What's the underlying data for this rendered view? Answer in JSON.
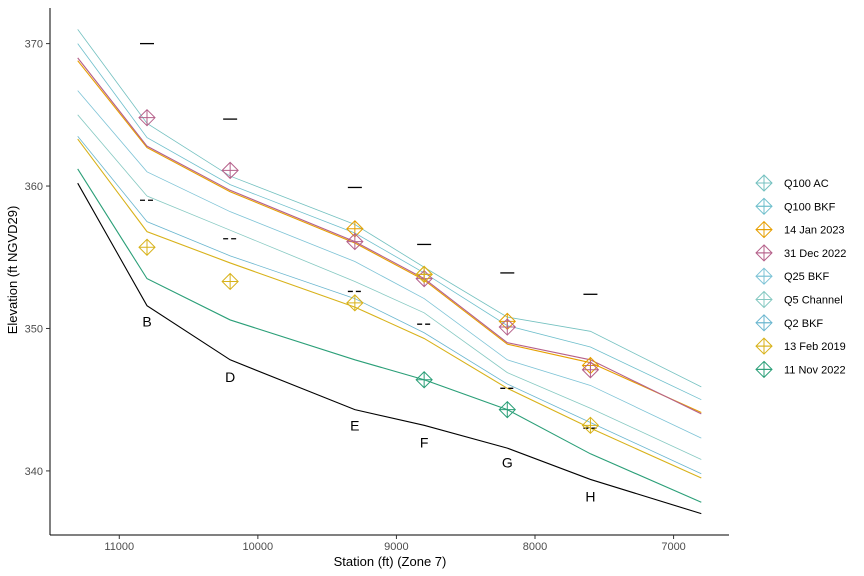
{
  "chart_data": {
    "type": "line",
    "xlabel": "Station (ft) (Zone 7)",
    "ylabel": "Elevation (ft NGVD29)",
    "xlim": [
      11500,
      6600
    ],
    "ylim": [
      335.5,
      372.5
    ],
    "x_reversed": true,
    "x_ticks": [
      11000,
      10000,
      9000,
      8000,
      7000
    ],
    "y_ticks": [
      340,
      350,
      360,
      370
    ],
    "grid": false,
    "legend_position": "right",
    "thalweg": {
      "color": "#000000",
      "x": [
        11300,
        10800,
        10200,
        9300,
        8800,
        8200,
        7600,
        6800
      ],
      "y": [
        360.2,
        351.6,
        347.8,
        344.3,
        343.2,
        341.6,
        339.4,
        337.0
      ]
    },
    "station_labels": [
      {
        "text": "B",
        "x": 10800,
        "y": 350.5
      },
      {
        "text": "D",
        "x": 10200,
        "y": 346.6
      },
      {
        "text": "E",
        "x": 9300,
        "y": 343.2
      },
      {
        "text": "F",
        "x": 8800,
        "y": 342.0
      },
      {
        "text": "G",
        "x": 8200,
        "y": 340.6
      },
      {
        "text": "H",
        "x": 7600,
        "y": 338.2
      }
    ],
    "dash_markers": [
      {
        "x": 10800,
        "y": 370.0,
        "style": "solid"
      },
      {
        "x": 10200,
        "y": 364.7,
        "style": "solid"
      },
      {
        "x": 9300,
        "y": 359.9,
        "style": "solid"
      },
      {
        "x": 8800,
        "y": 355.9,
        "style": "solid"
      },
      {
        "x": 8200,
        "y": 353.9,
        "style": "solid"
      },
      {
        "x": 7600,
        "y": 352.4,
        "style": "solid"
      },
      {
        "x": 10800,
        "y": 359.0,
        "style": "dashed"
      },
      {
        "x": 10200,
        "y": 356.3,
        "style": "dashed"
      },
      {
        "x": 9300,
        "y": 352.6,
        "style": "dashed"
      },
      {
        "x": 8800,
        "y": 350.3,
        "style": "dashed"
      },
      {
        "x": 8200,
        "y": 345.8,
        "style": "dashed"
      },
      {
        "x": 7600,
        "y": 343.0,
        "style": "dashed"
      }
    ],
    "series": [
      {
        "name": "Q100 AC",
        "color": "#74c1c0",
        "kind": "line",
        "x": [
          11300,
          10800,
          10200,
          9300,
          8800,
          8200,
          7600,
          6800
        ],
        "y": [
          371.0,
          364.4,
          360.7,
          357.3,
          354.3,
          350.8,
          349.8,
          345.9
        ]
      },
      {
        "name": "Q100 BKF",
        "color": "#6fbfcc",
        "kind": "line",
        "x": [
          11300,
          10800,
          10200,
          9300,
          8800,
          8200,
          7600,
          6800
        ],
        "y": [
          370.0,
          363.4,
          360.1,
          356.7,
          353.9,
          350.2,
          348.7,
          345.0
        ]
      },
      {
        "name": "14 Jan 2023",
        "color": "#e69f00",
        "kind": "line+marker",
        "x": [
          11300,
          10800,
          10200,
          9300,
          8800,
          8200,
          7600,
          6800
        ],
        "y": [
          368.8,
          362.7,
          359.6,
          356.0,
          353.4,
          348.9,
          347.6,
          344.1
        ],
        "marker_x": [
          9300,
          8800,
          8200,
          7600
        ],
        "marker_y": [
          357.0,
          353.8,
          350.5,
          347.4
        ]
      },
      {
        "name": "31 Dec 2022",
        "color": "#b5608a",
        "kind": "line+marker",
        "x": [
          11300,
          10800,
          10200,
          9300,
          8800,
          8200,
          7600,
          6800
        ],
        "y": [
          369.0,
          362.8,
          359.7,
          356.1,
          353.5,
          349.0,
          347.8,
          344.0
        ],
        "marker_x": [
          10800,
          10200,
          9300,
          8800,
          8200,
          7600
        ],
        "marker_y": [
          364.8,
          361.1,
          356.1,
          353.5,
          350.1,
          347.1
        ]
      },
      {
        "name": "Q25 BKF",
        "color": "#7dc3d6",
        "kind": "line",
        "x": [
          11300,
          10800,
          10200,
          9300,
          8800,
          8200,
          7600,
          6800
        ],
        "y": [
          366.7,
          361.0,
          358.2,
          354.7,
          352.1,
          347.8,
          346.0,
          342.3
        ]
      },
      {
        "name": "Q5 Channel",
        "color": "#86c9c2",
        "kind": "line",
        "x": [
          11300,
          10800,
          10200,
          9300,
          8800,
          8200,
          7600,
          6800
        ],
        "y": [
          365.0,
          359.3,
          356.9,
          353.3,
          351.1,
          346.9,
          344.4,
          340.8
        ]
      },
      {
        "name": "Q2 BKF",
        "color": "#6ab6cf",
        "kind": "line",
        "x": [
          11300,
          10800,
          10200,
          9300,
          8800,
          8200,
          7600,
          6800
        ],
        "y": [
          363.5,
          357.5,
          355.1,
          352.1,
          349.7,
          346.1,
          343.4,
          339.8
        ]
      },
      {
        "name": "13 Feb 2019",
        "color": "#d8b21a",
        "kind": "line+marker",
        "x": [
          11300,
          10800,
          10200,
          9300,
          8800,
          8200,
          7600,
          6800
        ],
        "y": [
          363.3,
          356.8,
          354.6,
          351.5,
          349.3,
          345.8,
          343.0,
          339.5
        ],
        "marker_x": [
          10800,
          10200,
          9300,
          8800,
          7600
        ],
        "marker_y": [
          355.7,
          353.3,
          351.8,
          353.8,
          343.2
        ]
      },
      {
        "name": "11 Nov 2022",
        "color": "#2b9f78",
        "kind": "line+marker",
        "x": [
          11300,
          10800,
          10200,
          9300,
          8800,
          8200,
          7600,
          6800
        ],
        "y": [
          361.2,
          353.5,
          350.6,
          347.8,
          346.4,
          344.3,
          341.2,
          337.8
        ],
        "marker_x": [
          8800,
          8200
        ],
        "marker_y": [
          346.4,
          344.3
        ]
      }
    ]
  }
}
